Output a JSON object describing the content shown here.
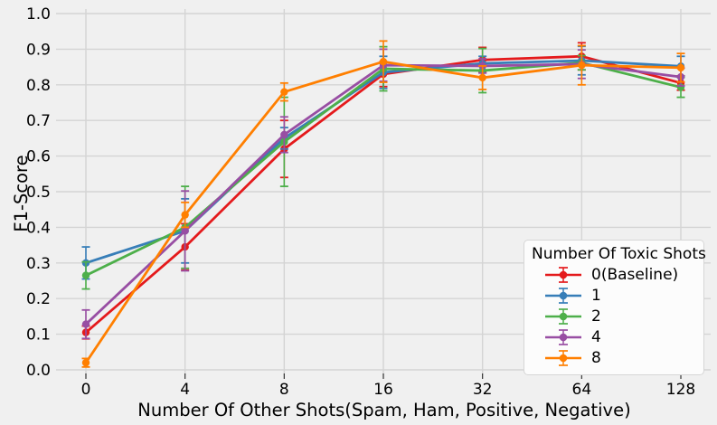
{
  "colors": {
    "background": "#f0f0f0",
    "grid": "#d4d4d4",
    "text": "#000000",
    "tick_mark": "#333333",
    "legend_background": "#fcfcfc",
    "legend_border": "#d6d6d6"
  },
  "chart_data": {
    "type": "line",
    "title": "",
    "xlabel": "Number Of Other Shots(Spam, Ham, Positive, Negative)",
    "ylabel": "F1-Score",
    "x_tick_labels": [
      "0",
      "4",
      "8",
      "16",
      "32",
      "64",
      "128"
    ],
    "y_tick_labels": [
      "0.0",
      "0.1",
      "0.2",
      "0.3",
      "0.4",
      "0.5",
      "0.6",
      "0.7",
      "0.8",
      "0.9",
      "1.0"
    ],
    "ylim": [
      0.0,
      1.0
    ],
    "grid": true,
    "marker": "circle",
    "error_bars": true,
    "legend": {
      "title": "Number Of Toxic Shots",
      "position": "lower right"
    },
    "series": [
      {
        "name": "0(Baseline)",
        "color": "#e41a1c",
        "values": [
          0.105,
          0.345,
          0.62,
          0.83,
          0.87,
          0.88,
          0.805
        ],
        "errors": [
          0.018,
          0.065,
          0.08,
          0.035,
          0.035,
          0.038,
          0.02
        ]
      },
      {
        "name": "1",
        "color": "#377eb8",
        "values": [
          0.3,
          0.39,
          0.65,
          0.835,
          0.86,
          0.868,
          0.852
        ],
        "errors": [
          0.045,
          0.09,
          0.03,
          0.045,
          0.02,
          0.04,
          0.028
        ]
      },
      {
        "name": "2",
        "color": "#4daf4a",
        "values": [
          0.265,
          0.4,
          0.64,
          0.845,
          0.84,
          0.862,
          0.793
        ],
        "errors": [
          0.038,
          0.115,
          0.125,
          0.062,
          0.062,
          0.02,
          0.028
        ]
      },
      {
        "name": "4",
        "color": "#984ea3",
        "values": [
          0.128,
          0.39,
          0.66,
          0.855,
          0.853,
          0.858,
          0.822
        ],
        "errors": [
          0.04,
          0.112,
          0.05,
          0.045,
          0.02,
          0.04,
          0.025
        ]
      },
      {
        "name": "8",
        "color": "#ff7f00",
        "values": [
          0.02,
          0.435,
          0.78,
          0.865,
          0.82,
          0.855,
          0.848
        ],
        "errors": [
          0.012,
          0.035,
          0.025,
          0.058,
          0.033,
          0.055,
          0.04
        ]
      }
    ]
  }
}
